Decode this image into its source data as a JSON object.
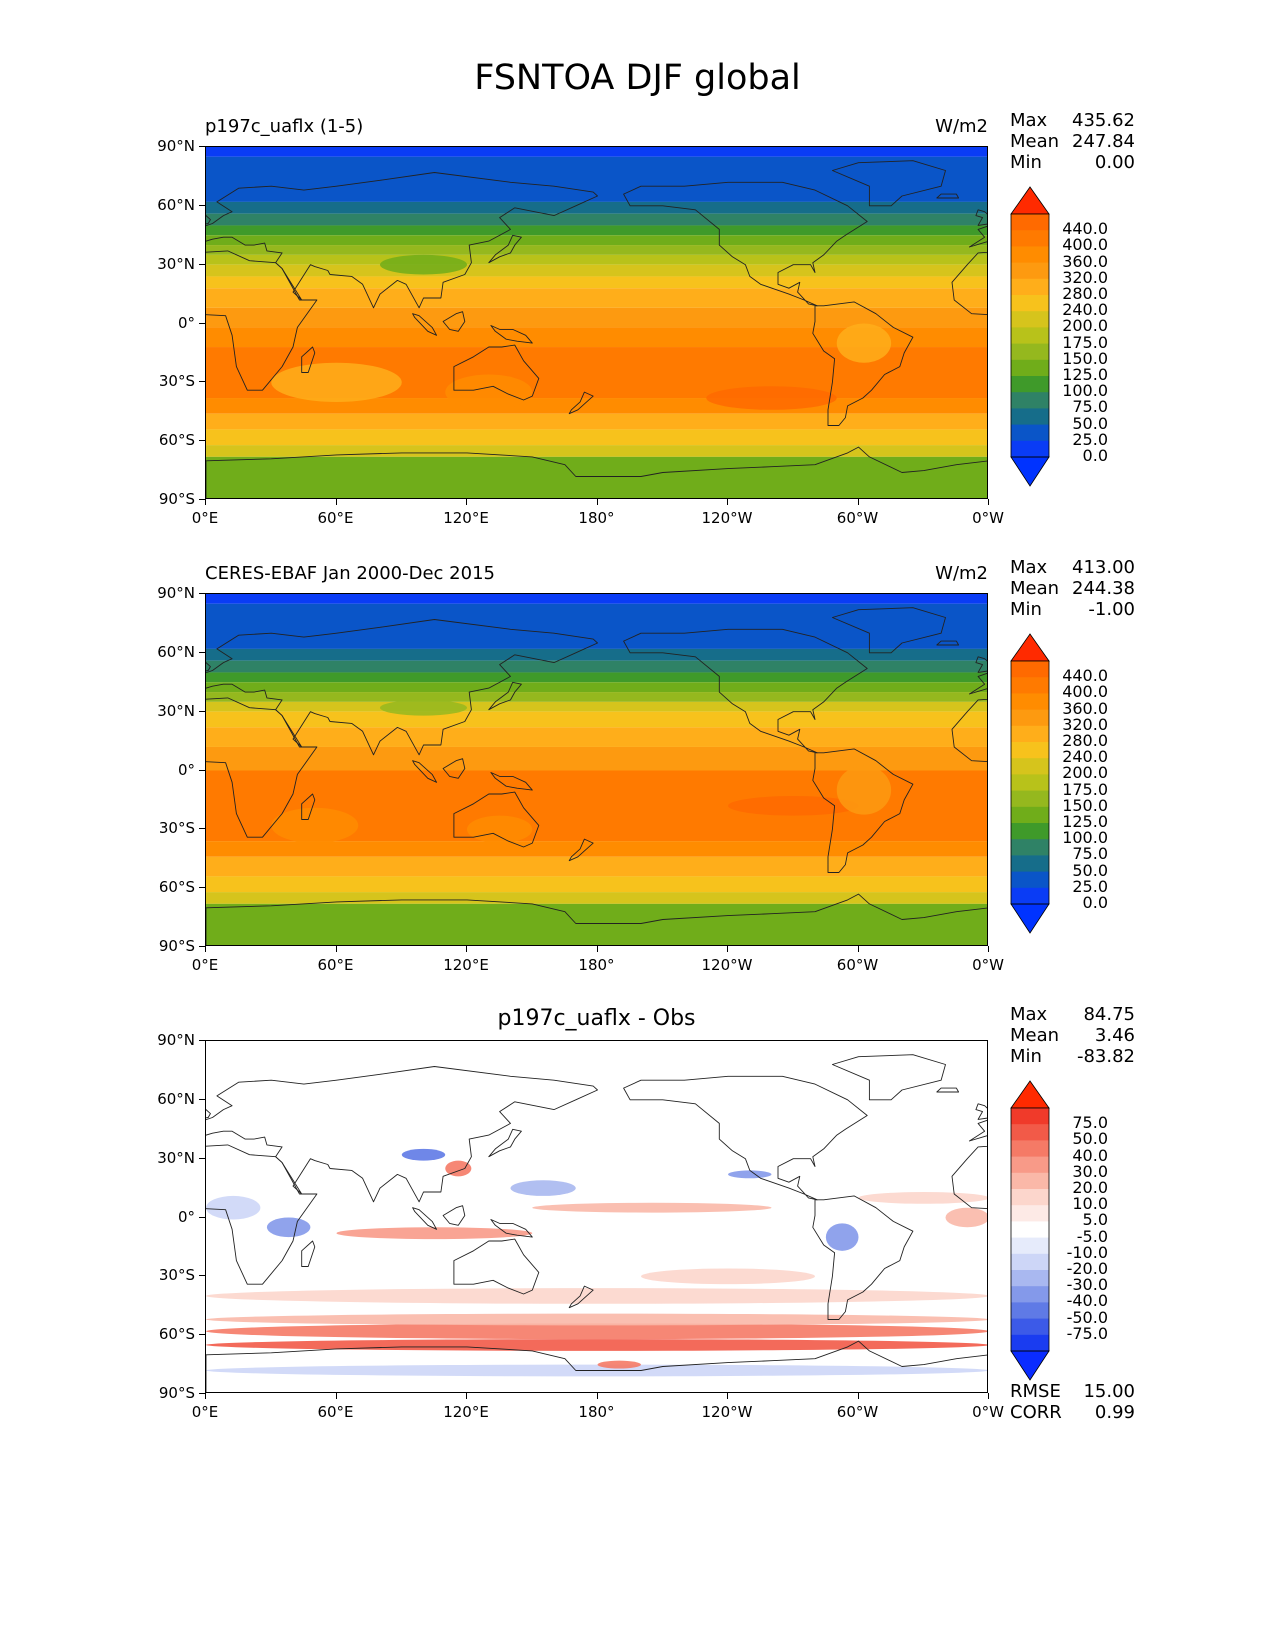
{
  "figure": {
    "title": "FSNTOA DJF global"
  },
  "axes": {
    "y_ticks": [
      "90°N",
      "60°N",
      "30°N",
      "0°",
      "30°S",
      "60°S",
      "90°S"
    ],
    "x_ticks": [
      "0°E",
      "60°E",
      "120°E",
      "180°",
      "120°W",
      "60°W",
      "0°W"
    ]
  },
  "panels": [
    {
      "id": "model",
      "title_left": "p197c_uaflx (1-5)",
      "title_right": "W/m2",
      "title_center": "",
      "stats": [
        {
          "key": "Max",
          "value": "435.62"
        },
        {
          "key": "Mean",
          "value": "247.84"
        },
        {
          "key": "Min",
          "value": "0.00"
        }
      ],
      "colorbar": {
        "labels": [
          "440.0",
          "400.0",
          "360.0",
          "320.0",
          "280.0",
          "240.0",
          "200.0",
          "175.0",
          "150.0",
          "125.0",
          "100.0",
          "75.0",
          "50.0",
          "25.0",
          "0.0"
        ],
        "colors": [
          "#ff6a00",
          "#ff7a00",
          "#ff8c00",
          "#fd9a10",
          "#ffae1a",
          "#f7c21c",
          "#d6c41c",
          "#b8c21a",
          "#95b81e",
          "#70ad1a",
          "#3f9a2a",
          "#2f8266",
          "#166d8a",
          "#0a55c8",
          "#0a3cf5"
        ],
        "over_color": "#ff2a00",
        "under_color": "#0033ff"
      }
    },
    {
      "id": "obs",
      "title_left": "CERES-EBAF Jan 2000-Dec 2015",
      "title_right": "W/m2",
      "title_center": "",
      "stats": [
        {
          "key": "Max",
          "value": "413.00"
        },
        {
          "key": "Mean",
          "value": "244.38"
        },
        {
          "key": "Min",
          "value": "-1.00"
        }
      ],
      "colorbar": {
        "labels": [
          "440.0",
          "400.0",
          "360.0",
          "320.0",
          "280.0",
          "240.0",
          "200.0",
          "175.0",
          "150.0",
          "125.0",
          "100.0",
          "75.0",
          "50.0",
          "25.0",
          "0.0"
        ],
        "colors": [
          "#ff6a00",
          "#ff7a00",
          "#ff8c00",
          "#fd9a10",
          "#ffae1a",
          "#f7c21c",
          "#d6c41c",
          "#b8c21a",
          "#95b81e",
          "#70ad1a",
          "#3f9a2a",
          "#2f8266",
          "#166d8a",
          "#0a55c8",
          "#0a3cf5"
        ],
        "over_color": "#ff2a00",
        "under_color": "#0033ff"
      }
    },
    {
      "id": "diff",
      "title_left": "",
      "title_right": "",
      "title_center": "p197c_uaflx - Obs",
      "stats": [
        {
          "key": "Max",
          "value": "84.75"
        },
        {
          "key": "Mean",
          "value": "3.46"
        },
        {
          "key": "Min",
          "value": "-83.82"
        }
      ],
      "extra_stats": [
        {
          "key": "RMSE",
          "value": "15.00"
        },
        {
          "key": "CORR",
          "value": "0.99"
        }
      ],
      "colorbar": {
        "labels": [
          "75.0",
          "50.0",
          "40.0",
          "30.0",
          "20.0",
          "10.0",
          "5.0",
          "-5.0",
          "-10.0",
          "-20.0",
          "-30.0",
          "-40.0",
          "-50.0",
          "-75.0"
        ],
        "colors": [
          "#f03a2a",
          "#f25a48",
          "#f57a66",
          "#f89a88",
          "#fab8a8",
          "#fcd6cc",
          "#fdeae6",
          "#ffffff",
          "#e6ebfb",
          "#cdd6f7",
          "#a9b8f0",
          "#8499ea",
          "#5f7ae6",
          "#3c5ae8",
          "#1a3cf0"
        ],
        "over_color": "#ff2a00",
        "under_color": "#0a2cff"
      }
    }
  ]
}
